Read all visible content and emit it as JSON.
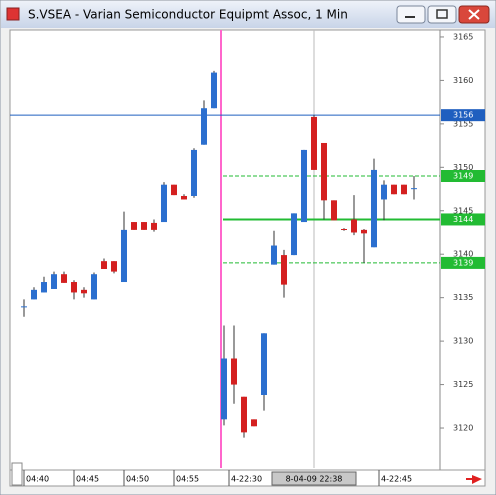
{
  "window": {
    "title": "S.VSEA - Varian Semiconductor Equipmt Assoc, 1 Min"
  },
  "chart_data": {
    "type": "candlestick",
    "ohlc": [
      [
        3134,
        3134.8,
        3132.8,
        3134
      ],
      [
        3134.8,
        3136.2,
        3134.8,
        3135.9
      ],
      [
        3135.6,
        3137.4,
        3135.6,
        3136.8
      ],
      [
        3136,
        3138,
        3136,
        3137.7
      ],
      [
        3137.7,
        3138,
        3136.7,
        3136.7
      ],
      [
        3136.8,
        3137,
        3134.8,
        3135.6
      ],
      [
        3135.9,
        3136.2,
        3135,
        3135.5
      ],
      [
        3134.8,
        3137.9,
        3134.8,
        3137.7
      ],
      [
        3139.2,
        3139.5,
        3138.3,
        3138.3
      ],
      [
        3139.2,
        3139.2,
        3137.8,
        3138
      ],
      [
        3136.8,
        3144.9,
        3136.8,
        3142.8
      ],
      [
        3143.7,
        3143.7,
        3142.8,
        3142.8
      ],
      [
        3143.7,
        3143.7,
        3142.8,
        3142.8
      ],
      [
        3143.6,
        3144,
        3142.6,
        3142.8
      ],
      [
        3143.7,
        3148.3,
        3143.7,
        3148
      ],
      [
        3148,
        3148,
        3146.8,
        3146.8
      ],
      [
        3146.7,
        3146.9,
        3146.3,
        3146.3
      ],
      [
        3146.7,
        3152.2,
        3146.5,
        3152
      ],
      [
        3152.6,
        3157.7,
        3152.6,
        3156.8
      ],
      [
        3156.8,
        3161.1,
        3156.8,
        3160.9
      ],
      [
        3121,
        3131.8,
        3120.3,
        3128
      ],
      [
        3128,
        3131.8,
        3122.8,
        3125
      ],
      [
        3123.6,
        3123.6,
        3118.9,
        3119.5
      ],
      [
        3121,
        3121,
        3120.2,
        3120.2
      ],
      [
        3123.8,
        3130.9,
        3122,
        3130.9
      ],
      [
        3138.8,
        3142.7,
        3138.8,
        3141
      ],
      [
        3139.9,
        3140.5,
        3135,
        3136.5
      ],
      [
        3139.9,
        3144.7,
        3139.9,
        3144.7
      ],
      [
        3143.7,
        3152,
        3143.7,
        3152
      ],
      [
        3155.8,
        3156,
        3149.7,
        3149.7
      ],
      [
        3152.8,
        3152.8,
        3144,
        3146.2
      ],
      [
        3146.2,
        3146.2,
        3143.9,
        3143.9
      ],
      [
        3142.9,
        3143,
        3142.7,
        3142.8
      ],
      [
        3144,
        3146.8,
        3142.2,
        3142.5
      ],
      [
        3142.8,
        3142.9,
        3139,
        3142.4
      ],
      [
        3140.8,
        3151,
        3140.8,
        3149.7
      ],
      [
        3146.3,
        3148.5,
        3143.9,
        3148
      ],
      [
        3148,
        3148,
        3146.9,
        3146.9
      ],
      [
        3148,
        3148,
        3146.9,
        3146.9
      ],
      [
        3147.5,
        3149,
        3146.3,
        3147.6
      ]
    ],
    "up_color": "#2b6fcf",
    "down_color": "#d42020",
    "xlim": [
      -1.4,
      41.6
    ],
    "xticks": [
      {
        "value": 0,
        "label": "04:40"
      },
      {
        "value": 5,
        "label": "04:45"
      },
      {
        "value": 10,
        "label": "04:50"
      },
      {
        "value": 15,
        "label": "04:55"
      },
      {
        "value": 20.5,
        "label": "4-22:30"
      },
      {
        "value": 35.5,
        "label": "4-22:45"
      }
    ],
    "ylim": [
      3115.4,
      3165.8
    ],
    "yticks": [
      3120,
      3125,
      3130,
      3135,
      3140,
      3145,
      3150,
      3155,
      3160,
      3165
    ],
    "session_break": 19.7,
    "session_break_color": "#ff66cc",
    "crosshair": {
      "x": 29,
      "x_label": "8-04-09 22:38"
    },
    "levels": [
      {
        "value": 3156,
        "color": "#1f5fbf",
        "style": "solid"
      },
      {
        "value": 3149,
        "color": "#22bb33",
        "style": "dashed"
      },
      {
        "value": 3144,
        "color": "#22bb33",
        "style": "solid"
      },
      {
        "value": 3139,
        "color": "#22bb33",
        "style": "dashed"
      }
    ]
  }
}
